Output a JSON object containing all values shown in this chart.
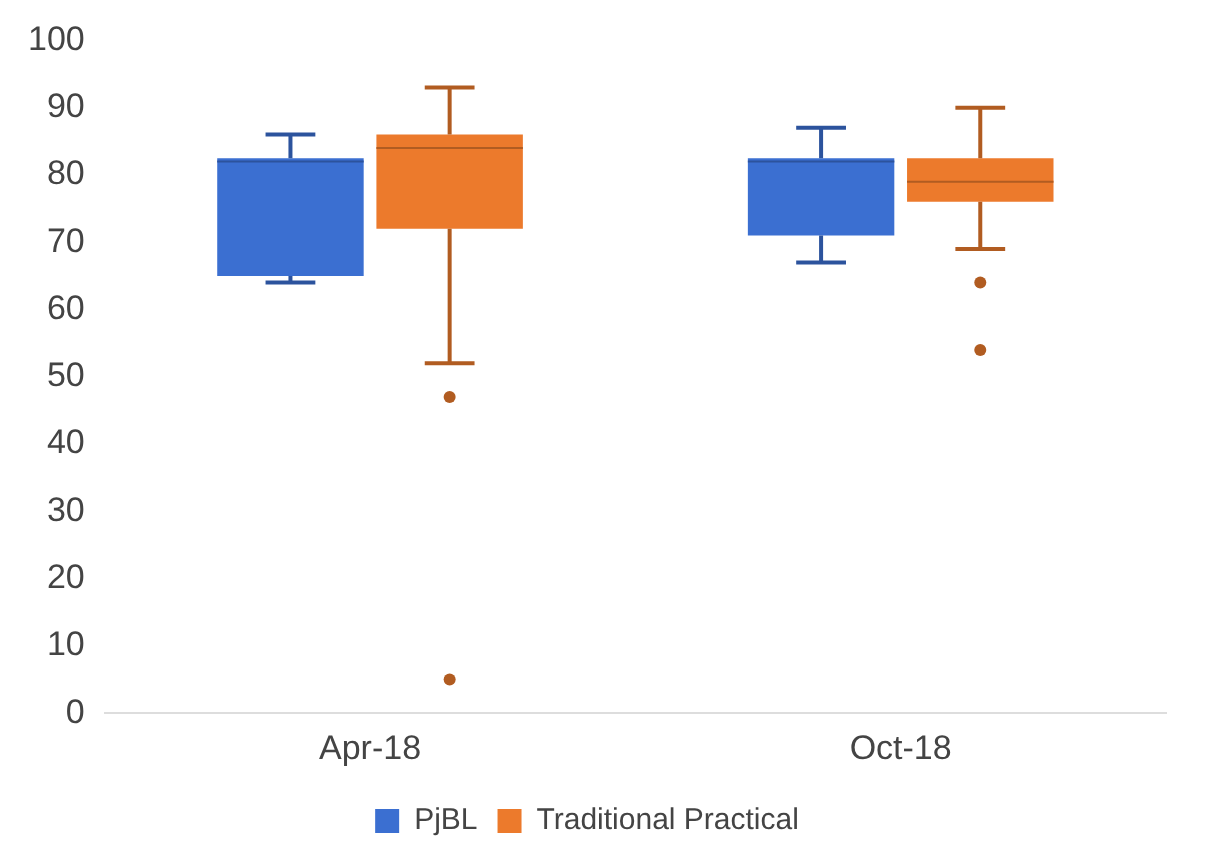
{
  "chart_data": {
    "type": "box",
    "categories": [
      "Apr-18",
      "Oct-18"
    ],
    "series": [
      {
        "name": "PjBL",
        "color": "#3b6fd1",
        "boxes": [
          {
            "low": 64,
            "q1": 65,
            "median": 82,
            "q3": 82.5,
            "high": 86
          },
          {
            "low": 67,
            "q1": 71,
            "median": 82,
            "q3": 82.5,
            "high": 87
          }
        ]
      },
      {
        "name": "Traditional Practical",
        "color": "#ec7a2c",
        "boxes": [
          {
            "low": 52,
            "q1": 72,
            "median": 84,
            "q3": 86,
            "high": 93,
            "outliers": [
              47,
              5
            ]
          },
          {
            "low": 69,
            "q1": 76,
            "median": 79,
            "q3": 82.5,
            "high": 90,
            "outliers": [
              64,
              54
            ]
          }
        ]
      }
    ],
    "ylim": [
      0,
      100
    ],
    "yticks": [
      0,
      10,
      20,
      30,
      40,
      50,
      60,
      70,
      80,
      90,
      100
    ],
    "grid": false,
    "legend": "bottom"
  }
}
